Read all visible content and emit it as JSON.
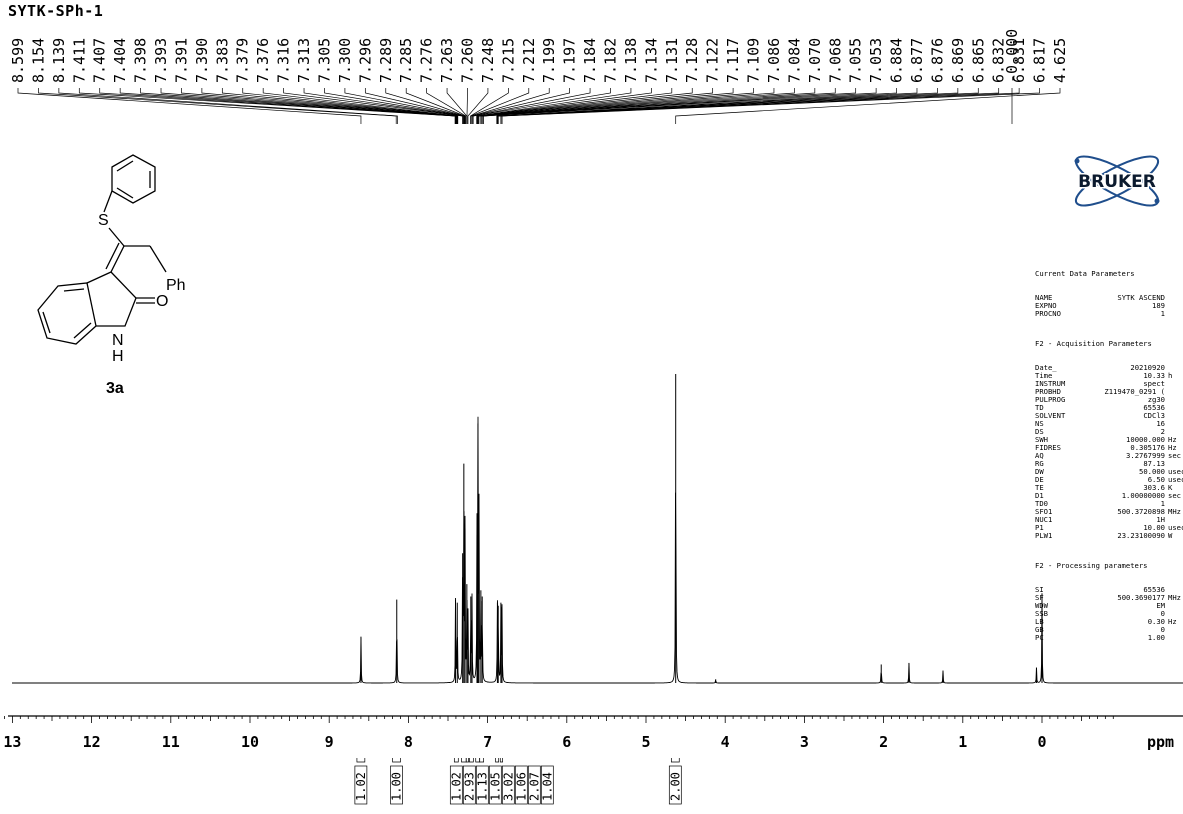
{
  "sample_name": "SYTK-SPh-1",
  "compound": {
    "label": "3a",
    "atoms": {
      "S": "S",
      "Ph": "Ph",
      "O": "O",
      "N": "N",
      "H": "H"
    }
  },
  "brand": "BRUKER",
  "parameters": {
    "header": "Current Data Parameters",
    "header_rows": [
      {
        "key": "NAME",
        "value": "SYTK ASCEND",
        "unit": ""
      },
      {
        "key": "EXPNO",
        "value": "189",
        "unit": ""
      },
      {
        "key": "PROCNO",
        "value": "1",
        "unit": ""
      }
    ],
    "acq_title": "F2 - Acquisition Parameters",
    "acq_rows": [
      {
        "key": "Date_",
        "value": "20210920",
        "unit": ""
      },
      {
        "key": "Time",
        "value": "10.33",
        "unit": "h"
      },
      {
        "key": "INSTRUM",
        "value": "spect",
        "unit": ""
      },
      {
        "key": "PROBHD",
        "value": "Z119470_0291 (",
        "unit": ""
      },
      {
        "key": "PULPROG",
        "value": "zg30",
        "unit": ""
      },
      {
        "key": "TD",
        "value": "65536",
        "unit": ""
      },
      {
        "key": "SOLVENT",
        "value": "CDCl3",
        "unit": ""
      },
      {
        "key": "NS",
        "value": "16",
        "unit": ""
      },
      {
        "key": "DS",
        "value": "2",
        "unit": ""
      },
      {
        "key": "SWH",
        "value": "10000.000",
        "unit": "Hz"
      },
      {
        "key": "FIDRES",
        "value": "0.305176",
        "unit": "Hz"
      },
      {
        "key": "AQ",
        "value": "3.2767999",
        "unit": "sec"
      },
      {
        "key": "RG",
        "value": "87.13",
        "unit": ""
      },
      {
        "key": "DW",
        "value": "50.000",
        "unit": "usec"
      },
      {
        "key": "DE",
        "value": "6.50",
        "unit": "usec"
      },
      {
        "key": "TE",
        "value": "303.6",
        "unit": "K"
      },
      {
        "key": "D1",
        "value": "1.00000000",
        "unit": "sec"
      },
      {
        "key": "TD0",
        "value": "1",
        "unit": ""
      },
      {
        "key": "SFO1",
        "value": "500.3720898",
        "unit": "MHz"
      },
      {
        "key": "NUC1",
        "value": "1H",
        "unit": ""
      },
      {
        "key": "P1",
        "value": "10.00",
        "unit": "usec"
      },
      {
        "key": "PLW1",
        "value": "23.23100090",
        "unit": "W"
      }
    ],
    "proc_title": "F2 - Processing parameters",
    "proc_rows": [
      {
        "key": "SI",
        "value": "65536",
        "unit": ""
      },
      {
        "key": "SF",
        "value": "500.3690177",
        "unit": "MHz"
      },
      {
        "key": "WDW",
        "value": "EM",
        "unit": ""
      },
      {
        "key": "SSB",
        "value": "0",
        "unit": ""
      },
      {
        "key": "LB",
        "value": "0.30",
        "unit": "Hz"
      },
      {
        "key": "GB",
        "value": "0",
        "unit": ""
      },
      {
        "key": "PC",
        "value": "1.00",
        "unit": ""
      }
    ]
  },
  "chart_data": {
    "type": "line",
    "title": "SYTK-SPh-1",
    "xlabel": "ppm",
    "xlim": [
      14.0,
      -0.9
    ],
    "x_ticks": [
      13,
      12,
      11,
      10,
      9,
      8,
      7,
      6,
      5,
      4,
      3,
      2,
      1,
      0
    ],
    "peak_labels": [
      "8.599",
      "8.154",
      "8.139",
      "7.411",
      "7.407",
      "7.404",
      "7.398",
      "7.393",
      "7.391",
      "7.390",
      "7.383",
      "7.379",
      "7.376",
      "7.316",
      "7.313",
      "7.305",
      "7.300",
      "7.296",
      "7.289",
      "7.285",
      "7.276",
      "7.263",
      "7.260",
      "7.248",
      "7.215",
      "7.212",
      "7.199",
      "7.197",
      "7.184",
      "7.182",
      "7.138",
      "7.134",
      "7.131",
      "7.128",
      "7.122",
      "7.117",
      "7.109",
      "7.086",
      "7.084",
      "7.070",
      "7.068",
      "7.055",
      "7.053",
      "6.884",
      "6.877",
      "6.876",
      "6.869",
      "6.865",
      "6.832",
      "6.831",
      "6.817",
      "4.625"
    ],
    "reference_label": "-0.000",
    "peaks": [
      {
        "ppm": 8.599,
        "height": 0.15
      },
      {
        "ppm": 8.147,
        "height": 0.27
      },
      {
        "ppm": 7.405,
        "height": 0.27
      },
      {
        "ppm": 7.383,
        "height": 0.26
      },
      {
        "ppm": 7.315,
        "height": 0.42
      },
      {
        "ppm": 7.3,
        "height": 0.71
      },
      {
        "ppm": 7.285,
        "height": 0.5
      },
      {
        "ppm": 7.262,
        "height": 0.32
      },
      {
        "ppm": 7.248,
        "height": 0.22
      },
      {
        "ppm": 7.212,
        "height": 0.28
      },
      {
        "ppm": 7.197,
        "height": 0.27
      },
      {
        "ppm": 7.134,
        "height": 0.48
      },
      {
        "ppm": 7.122,
        "height": 0.84
      },
      {
        "ppm": 7.109,
        "height": 0.56
      },
      {
        "ppm": 7.085,
        "height": 0.3
      },
      {
        "ppm": 7.068,
        "height": 0.28
      },
      {
        "ppm": 6.876,
        "height": 0.26
      },
      {
        "ppm": 6.866,
        "height": 0.25
      },
      {
        "ppm": 6.832,
        "height": 0.26
      },
      {
        "ppm": 6.818,
        "height": 0.24
      },
      {
        "ppm": 4.625,
        "height": 1.0
      },
      {
        "ppm": 4.12,
        "height": 0.012
      },
      {
        "ppm": 2.03,
        "height": 0.06
      },
      {
        "ppm": 1.68,
        "height": 0.065
      },
      {
        "ppm": 1.25,
        "height": 0.04
      },
      {
        "ppm": 0.07,
        "height": 0.05
      },
      {
        "ppm": 0.0,
        "height": 0.29
      }
    ],
    "integrals": [
      {
        "ppm_start": 8.65,
        "ppm_end": 8.55,
        "value": "1.02"
      },
      {
        "ppm_start": 8.2,
        "ppm_end": 8.1,
        "value": "1.00"
      },
      {
        "ppm_start": 7.42,
        "ppm_end": 7.37,
        "value": "1.02"
      },
      {
        "ppm_start": 7.33,
        "ppm_end": 7.27,
        "value": "2.93"
      },
      {
        "ppm_start": 7.27,
        "ppm_end": 7.24,
        "value": "1.13"
      },
      {
        "ppm_start": 7.23,
        "ppm_end": 7.18,
        "value": "1.05"
      },
      {
        "ppm_start": 7.15,
        "ppm_end": 7.1,
        "value": "3.02"
      },
      {
        "ppm_start": 7.1,
        "ppm_end": 7.05,
        "value": "1.06"
      },
      {
        "ppm_start": 6.9,
        "ppm_end": 6.86,
        "value": "2.07"
      },
      {
        "ppm_start": 6.84,
        "ppm_end": 6.81,
        "value": "1.04"
      },
      {
        "ppm_start": 4.68,
        "ppm_end": 4.58,
        "value": "2.00"
      }
    ]
  }
}
